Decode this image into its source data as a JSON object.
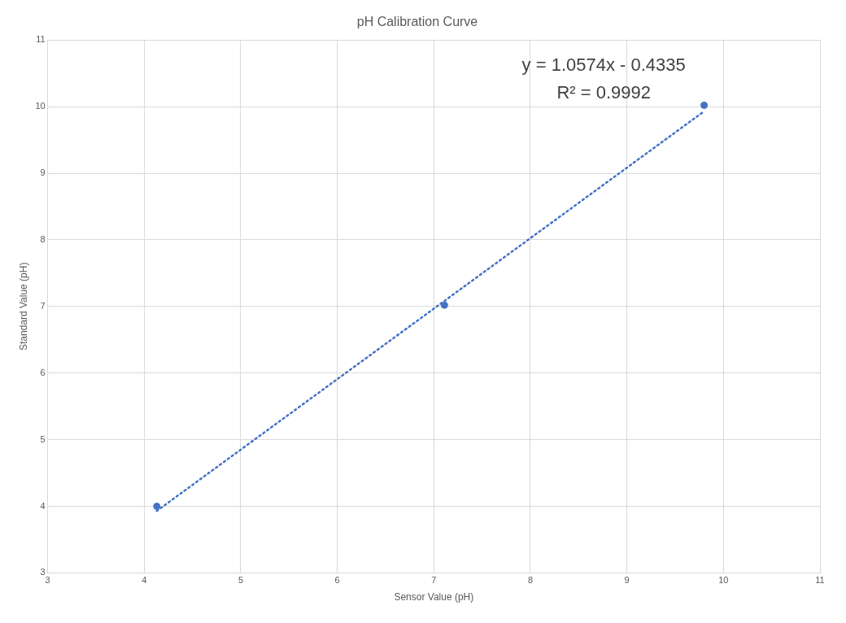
{
  "chart_data": {
    "type": "scatter",
    "title": "pH Calibration Curve",
    "xlabel": "Sensor Value (pH)",
    "ylabel": "Standard Value (pH)",
    "series": [
      {
        "color": "#4472c4",
        "x": [
          4.13,
          7.11,
          9.8
        ],
        "values": [
          4.0,
          7.02,
          10.02
        ],
        "marker": "circle"
      },
      {
        "type": "line",
        "color": "#4472c4",
        "x": [
          4.13,
          9.8
        ],
        "values": [
          3.93,
          9.93
        ],
        "marker": "none",
        "line_style": "dotted"
      }
    ],
    "xlim": [
      3,
      11
    ],
    "xticks": [
      3,
      4,
      5,
      6,
      7,
      8,
      9,
      10,
      11
    ],
    "ylim": [
      3,
      11
    ],
    "yticks": [
      3,
      4,
      5,
      6,
      7,
      8,
      9,
      10,
      11
    ],
    "grid": true,
    "legend": false,
    "annotations": [
      "y = 1.0574x - 0.4335",
      "R² = 0.9992"
    ]
  }
}
